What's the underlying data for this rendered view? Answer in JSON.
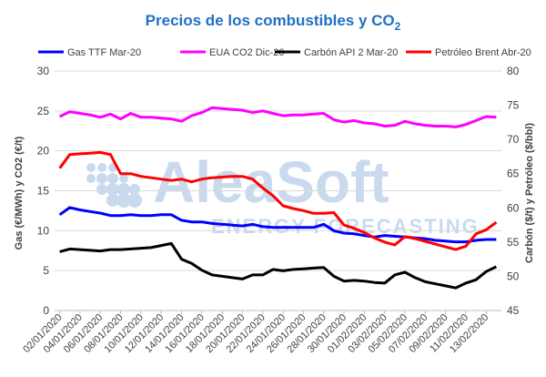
{
  "chart_data": {
    "type": "line",
    "title": "Precios de los combustibles y CO",
    "title_subscript": "2",
    "ylabel_left": "Gas (€/MWh) y CO2 (€/t)",
    "ylabel_right": "Carbón ($/t) y Petróleo ($/bbl)",
    "ylim_left": [
      0,
      30
    ],
    "yticks_left": [
      "0",
      "5",
      "10",
      "15",
      "20",
      "25",
      "30"
    ],
    "ylim_right": [
      45,
      80
    ],
    "yticks_right": [
      "45",
      "50",
      "55",
      "60",
      "65",
      "70",
      "75",
      "80"
    ],
    "grid": true,
    "legend_position": "top",
    "watermark": {
      "brand": "AleaSoft",
      "tagline": "ENERGY FORECASTING"
    },
    "x": [
      "02/01/2020",
      "03/01/2020",
      "04/01/2020",
      "05/01/2020",
      "06/01/2020",
      "07/01/2020",
      "08/01/2020",
      "09/01/2020",
      "10/01/2020",
      "11/01/2020",
      "12/01/2020",
      "13/01/2020",
      "14/01/2020",
      "15/01/2020",
      "16/01/2020",
      "17/01/2020",
      "18/01/2020",
      "19/01/2020",
      "20/01/2020",
      "21/01/2020",
      "22/01/2020",
      "23/01/2020",
      "24/01/2020",
      "25/01/2020",
      "26/01/2020",
      "27/01/2020",
      "28/01/2020",
      "29/01/2020",
      "30/01/2020",
      "31/01/2020",
      "01/02/2020",
      "02/02/2020",
      "03/02/2020",
      "04/02/2020",
      "05/02/2020",
      "06/02/2020",
      "07/02/2020",
      "08/02/2020",
      "09/02/2020",
      "10/02/2020",
      "11/02/2020",
      "12/02/2020",
      "13/02/2020",
      "14/02/2020"
    ],
    "xticks": [
      "02/01/2020",
      "04/01/2020",
      "06/01/2020",
      "08/01/2020",
      "10/01/2020",
      "12/01/2020",
      "14/01/2020",
      "16/01/2020",
      "18/01/2020",
      "20/01/2020",
      "22/01/2020",
      "24/01/2020",
      "26/01/2020",
      "28/01/2020",
      "30/01/2020",
      "01/02/2020",
      "03/02/2020",
      "05/02/2020",
      "07/02/2020",
      "09/02/2020",
      "11/02/2020",
      "13/02/2020"
    ],
    "series": [
      {
        "name": "Gas TTF Mar-20",
        "color": "#0000ff",
        "axis": "left",
        "values": [
          12.0,
          12.9,
          12.6,
          12.4,
          12.2,
          11.9,
          11.9,
          12.0,
          11.9,
          11.9,
          12.0,
          12.0,
          11.3,
          11.1,
          11.1,
          10.9,
          10.8,
          10.7,
          10.6,
          10.8,
          10.5,
          10.4,
          10.4,
          10.4,
          10.4,
          10.4,
          10.8,
          10.0,
          9.7,
          9.6,
          9.4,
          9.2,
          9.4,
          9.3,
          9.2,
          9.1,
          9.0,
          8.8,
          8.7,
          8.6,
          8.6,
          8.8,
          8.9,
          8.9
        ]
      },
      {
        "name": "EUA CO2 Dic-20",
        "color": "#ff00ff",
        "axis": "left",
        "values": [
          24.3,
          24.9,
          24.7,
          24.5,
          24.2,
          24.6,
          24.0,
          24.7,
          24.2,
          24.2,
          24.1,
          24.0,
          23.7,
          24.4,
          24.8,
          25.4,
          25.3,
          25.2,
          25.1,
          24.8,
          25.0,
          24.7,
          24.4,
          24.5,
          24.5,
          24.6,
          24.7,
          23.9,
          23.6,
          23.8,
          23.5,
          23.4,
          23.1,
          23.2,
          23.7,
          23.4,
          23.2,
          23.1,
          23.1,
          23.0,
          23.3,
          23.8,
          24.3,
          24.2
        ]
      },
      {
        "name": "Carbón API 2 Mar-20",
        "color": "#000000",
        "axis": "right",
        "values": [
          53.6,
          54.0,
          53.9,
          53.8,
          53.7,
          53.9,
          53.9,
          54.0,
          54.1,
          54.2,
          54.5,
          54.8,
          52.5,
          51.9,
          50.9,
          50.2,
          50.0,
          49.8,
          49.6,
          50.2,
          50.2,
          51.0,
          50.8,
          51.0,
          51.1,
          51.2,
          51.3,
          50.0,
          49.3,
          49.4,
          49.3,
          49.1,
          49.0,
          50.2,
          50.6,
          49.8,
          49.2,
          48.9,
          48.6,
          48.3,
          49.0,
          49.5,
          50.7,
          51.4
        ]
      },
      {
        "name": "Petróleo Brent Abr-20",
        "color": "#ff0000",
        "axis": "right",
        "values": [
          65.8,
          67.8,
          67.9,
          68.0,
          68.1,
          67.8,
          65.0,
          65.0,
          64.6,
          64.4,
          64.2,
          64.0,
          64.2,
          63.8,
          64.2,
          64.4,
          64.5,
          64.6,
          64.6,
          64.2,
          62.9,
          61.8,
          60.3,
          59.9,
          59.6,
          59.2,
          59.2,
          59.3,
          57.5,
          57.0,
          56.4,
          55.6,
          55.0,
          54.6,
          55.8,
          55.5,
          55.1,
          54.7,
          54.3,
          53.9,
          54.4,
          56.2,
          56.8,
          57.9
        ]
      }
    ]
  }
}
